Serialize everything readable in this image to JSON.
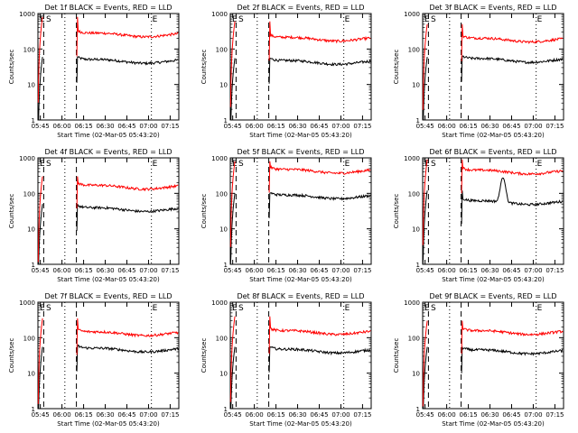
{
  "page": {
    "background": "#ffffff"
  },
  "colors": {
    "events": "#000000",
    "lld": "#ff0000",
    "axes": "#000000"
  },
  "common": {
    "ylabel": "Counts/sec",
    "xlabel": "Start Time (02-Mar-05 05:43:20)",
    "xticks": [
      "05:45",
      "06:00",
      "06:15",
      "06:30",
      "06:45",
      "07:00",
      "07:15"
    ],
    "yticks": [
      "1",
      "10",
      "100",
      "1000"
    ],
    "markers": [
      "E",
      "S",
      "E"
    ]
  },
  "chart_data": [
    {
      "type": "line",
      "title": "Det 1f BLACK = Events, RED = LLD",
      "ylog": true,
      "ylim": [
        1,
        1000
      ],
      "xlim": [
        "05:43:20",
        "07:21"
      ],
      "series": [
        {
          "name": "Events",
          "color": "#000000",
          "level": 45,
          "rise": 60,
          "spike": null
        },
        {
          "name": "LLD",
          "color": "#ff0000",
          "level": 250,
          "rise": 800,
          "spike": null
        }
      ]
    },
    {
      "type": "line",
      "title": "Det 2f BLACK = Events, RED = LLD",
      "ylog": true,
      "ylim": [
        1,
        1000
      ],
      "xlim": [
        "05:43:20",
        "07:21"
      ],
      "series": [
        {
          "name": "Events",
          "color": "#000000",
          "level": 42,
          "rise": 55,
          "spike": null
        },
        {
          "name": "LLD",
          "color": "#ff0000",
          "level": 190,
          "rise": 600,
          "spike": null
        }
      ]
    },
    {
      "type": "line",
      "title": "Det 3f BLACK = Events, RED = LLD",
      "ylog": true,
      "ylim": [
        1,
        1000
      ],
      "xlim": [
        "05:43:20",
        "07:21"
      ],
      "series": [
        {
          "name": "Events",
          "color": "#000000",
          "level": 48,
          "rise": 60,
          "spike": null
        },
        {
          "name": "LLD",
          "color": "#ff0000",
          "level": 180,
          "rise": 500,
          "spike": null
        }
      ]
    },
    {
      "type": "line",
      "title": "Det 4f BLACK = Events, RED = LLD",
      "ylog": true,
      "ylim": [
        1,
        1000
      ],
      "xlim": [
        "05:43:20",
        "07:21"
      ],
      "series": [
        {
          "name": "Events",
          "color": "#000000",
          "level": 35,
          "rise": 50,
          "spike": null
        },
        {
          "name": "LLD",
          "color": "#ff0000",
          "level": 150,
          "rise": 300,
          "spike": null
        }
      ]
    },
    {
      "type": "line",
      "title": "Det 5f BLACK = Events, RED = LLD",
      "ylog": true,
      "ylim": [
        1,
        1000
      ],
      "xlim": [
        "05:43:20",
        "07:21"
      ],
      "series": [
        {
          "name": "Events",
          "color": "#000000",
          "level": 80,
          "rise": 100,
          "spike": null
        },
        {
          "name": "LLD",
          "color": "#ff0000",
          "level": 420,
          "rise": 800,
          "spike": null
        }
      ]
    },
    {
      "type": "line",
      "title": "Det 6f BLACK = Events, RED = LLD",
      "ylog": true,
      "ylim": [
        1,
        1000
      ],
      "xlim": [
        "05:43:20",
        "07:21"
      ],
      "series": [
        {
          "name": "Events",
          "color": "#000000",
          "level": 55,
          "rise": 120,
          "spike": {
            "at": "06:39",
            "peak": 220
          }
        },
        {
          "name": "LLD",
          "color": "#ff0000",
          "level": 400,
          "rise": 900,
          "spike": null
        }
      ]
    },
    {
      "type": "line",
      "title": "Det 7f BLACK = Events, RED = LLD",
      "ylog": true,
      "ylim": [
        1,
        1000
      ],
      "xlim": [
        "05:43:20",
        "07:21"
      ],
      "series": [
        {
          "name": "Events",
          "color": "#000000",
          "level": 45,
          "rise": 55,
          "spike": null
        },
        {
          "name": "LLD",
          "color": "#ff0000",
          "level": 130,
          "rise": 350,
          "spike": null
        }
      ]
    },
    {
      "type": "line",
      "title": "Det 8f BLACK = Events, RED = LLD",
      "ylog": true,
      "ylim": [
        1,
        1000
      ],
      "xlim": [
        "05:43:20",
        "07:21"
      ],
      "series": [
        {
          "name": "Events",
          "color": "#000000",
          "level": 42,
          "rise": 55,
          "spike": null
        },
        {
          "name": "LLD",
          "color": "#ff0000",
          "level": 140,
          "rise": 400,
          "spike": null
        }
      ]
    },
    {
      "type": "line",
      "title": "Det 9f BLACK = Events, RED = LLD",
      "ylog": true,
      "ylim": [
        1,
        1000
      ],
      "xlim": [
        "05:43:20",
        "07:21"
      ],
      "series": [
        {
          "name": "Events",
          "color": "#000000",
          "level": 40,
          "rise": 55,
          "spike": null
        },
        {
          "name": "LLD",
          "color": "#ff0000",
          "level": 140,
          "rise": 300,
          "spike": null
        }
      ]
    }
  ]
}
